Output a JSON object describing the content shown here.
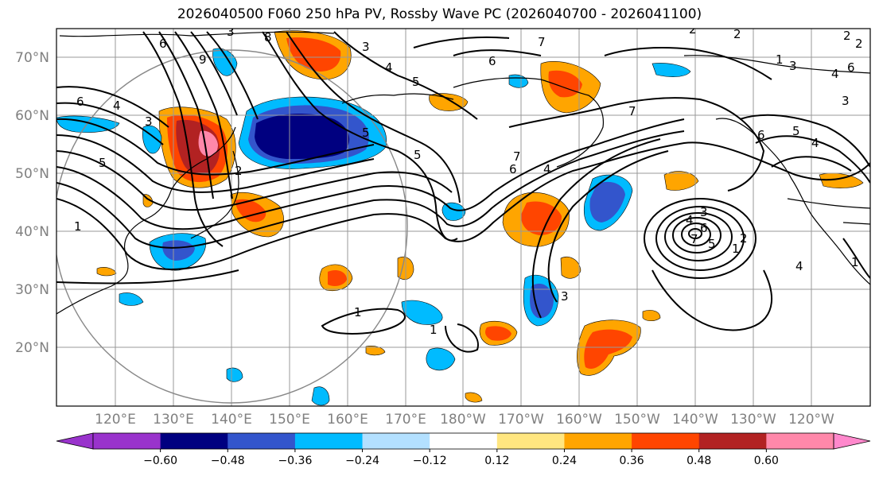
{
  "title": "2026040500 F060 250 hPa PV, Rossby Wave PC (2026040700 - 2026041100)",
  "lat_labels": [
    "70°N",
    "60°N",
    "50°N",
    "40°N",
    "30°N",
    "20°N"
  ],
  "lon_labels": [
    "120°E",
    "130°E",
    "140°E",
    "150°E",
    "160°E",
    "170°E",
    "180°W",
    "170°W",
    "160°W",
    "150°W",
    "140°W",
    "130°W",
    "120°W"
  ],
  "colorbar": {
    "ticks": [
      "−0.60",
      "−0.48",
      "−0.36",
      "−0.24",
      "−0.12",
      "0.12",
      "0.24",
      "0.36",
      "0.48",
      "0.60"
    ],
    "colors": [
      "#9933cc",
      "#000080",
      "#3355cc",
      "#00bbff",
      "#b3e0ff",
      "#ffffff",
      "#ffe680",
      "#ffa500",
      "#ff4500",
      "#b22222",
      "#ff88aa",
      "#ff88cc"
    ]
  },
  "contour_labels": [
    "7",
    "6",
    "5",
    "4",
    "3",
    "2",
    "1",
    "9",
    "8",
    "6",
    "5",
    "4",
    "3",
    "2",
    "1",
    "7",
    "6",
    "5",
    "4",
    "3",
    "2",
    "6",
    "5",
    "4",
    "3",
    "2",
    "1",
    "6",
    "7",
    "5",
    "4",
    "3",
    "2",
    "1",
    "3",
    "4",
    "5",
    "6",
    "7",
    "2",
    "1",
    "6",
    "4",
    "3",
    "1"
  ]
}
